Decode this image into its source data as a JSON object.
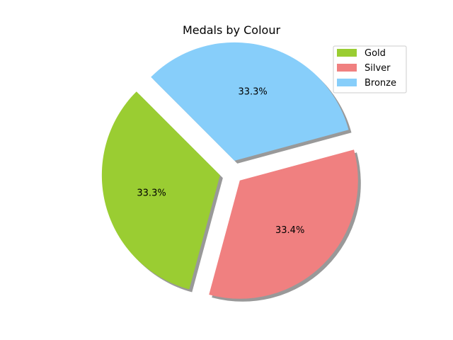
{
  "chart_data": {
    "type": "pie",
    "title": "Medals by Colour",
    "categories": [
      "Gold",
      "Silver",
      "Bronze"
    ],
    "values": [
      33.3,
      33.4,
      33.3
    ],
    "labels": [
      "33.3%",
      "33.4%",
      "33.3%"
    ],
    "colors": [
      "#9acd32",
      "#f08080",
      "#87cefa"
    ],
    "exploded": true,
    "shadow": true,
    "legend_position": "top-right"
  }
}
